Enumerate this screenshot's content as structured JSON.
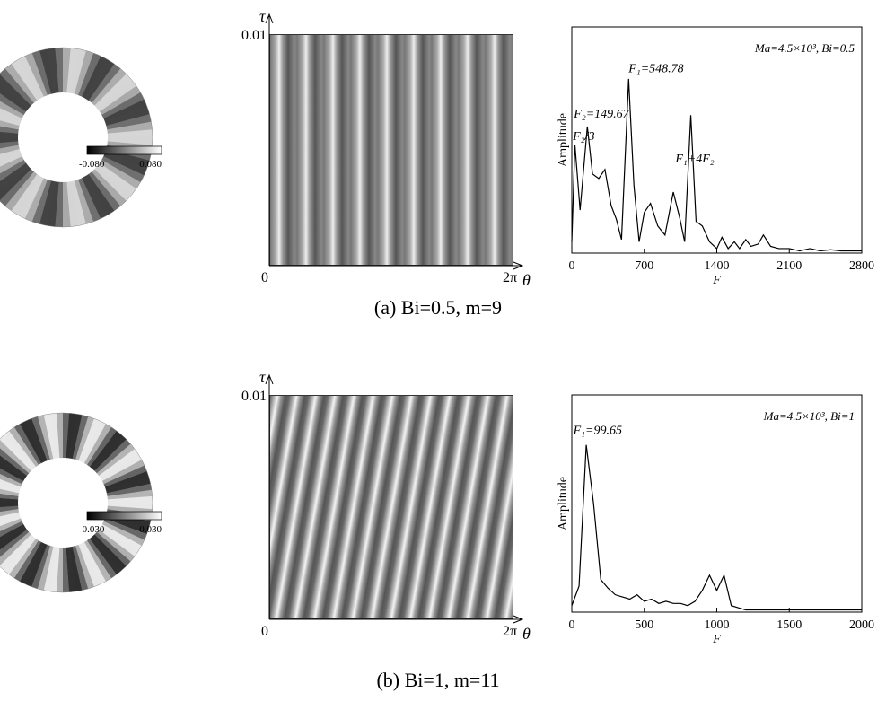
{
  "panels": [
    {
      "colorbar": {
        "min_label": "-0.080",
        "max_label": "0.080"
      },
      "spacetime": {
        "y_label": "τ",
        "y_top": "0.01",
        "origin": "0",
        "x_end": "2π",
        "x_label": "θ"
      },
      "caption": "(a) Bi=0.5, m=9"
    },
    {
      "colorbar": {
        "min_label": "-0.030",
        "max_label": "0.030"
      },
      "spacetime": {
        "y_label": "τ",
        "y_top": "0.01",
        "origin": "0",
        "x_end": "2π",
        "x_label": "θ"
      },
      "caption": "(b) Bi=1, m=11"
    }
  ],
  "chart_data": [
    {
      "type": "line",
      "xlabel": "F",
      "ylabel": "Amplitude",
      "legend_text": "Ma=4.5×10³, Bi=0.5",
      "x": [
        0,
        30,
        80,
        150,
        200,
        260,
        320,
        380,
        430,
        480,
        548.78,
        600,
        650,
        700,
        760,
        830,
        900,
        980,
        1040,
        1090,
        1149,
        1200,
        1260,
        1330,
        1400,
        1450,
        1510,
        1570,
        1620,
        1680,
        1730,
        1800,
        1850,
        1920,
        2000,
        2100,
        2200,
        2300,
        2400,
        2500,
        2600,
        2700,
        2800
      ],
      "series": [
        {
          "color": "#000000",
          "values": [
            0.05,
            0.48,
            0.19,
            0.56,
            0.35,
            0.33,
            0.37,
            0.21,
            0.15,
            0.06,
            0.77,
            0.3,
            0.05,
            0.18,
            0.22,
            0.12,
            0.08,
            0.27,
            0.16,
            0.05,
            0.61,
            0.14,
            0.12,
            0.05,
            0.02,
            0.07,
            0.02,
            0.05,
            0.02,
            0.06,
            0.03,
            0.04,
            0.08,
            0.03,
            0.02,
            0.02,
            0.01,
            0.02,
            0.01,
            0.015,
            0.01,
            0.01,
            0.01
          ]
        }
      ],
      "annotations": [
        {
          "text": "F₁=548.78",
          "x": 548.78,
          "y": 0.8
        },
        {
          "text": "F₂=149.67",
          "x": 20,
          "y": 0.6
        },
        {
          "text": "F₂/3",
          "x": 10,
          "y": 0.5
        },
        {
          "text": "F₁+4F₂",
          "x": 1000,
          "y": 0.4
        }
      ],
      "xlim": [
        0,
        2800
      ],
      "ylim": [
        0,
        1
      ],
      "xticks": [
        0,
        700,
        1400,
        2100,
        2800
      ]
    },
    {
      "type": "line",
      "xlabel": "F",
      "ylabel": "Amplitude",
      "legend_text": "Ma=4.5×10³, Bi=1",
      "x": [
        0,
        50,
        99.65,
        150,
        200,
        250,
        300,
        350,
        400,
        450,
        500,
        550,
        600,
        650,
        700,
        750,
        800,
        850,
        900,
        950,
        1000,
        1050,
        1100,
        1150,
        1200,
        1300,
        1400,
        1500,
        1600,
        1700,
        1800,
        1900,
        2000
      ],
      "series": [
        {
          "color": "#000000",
          "values": [
            0.03,
            0.12,
            0.77,
            0.5,
            0.15,
            0.11,
            0.08,
            0.07,
            0.06,
            0.08,
            0.05,
            0.06,
            0.04,
            0.05,
            0.04,
            0.04,
            0.03,
            0.05,
            0.1,
            0.17,
            0.1,
            0.17,
            0.03,
            0.02,
            0.01,
            0.01,
            0.01,
            0.01,
            0.01,
            0.01,
            0.01,
            0.01,
            0.01
          ]
        }
      ],
      "annotations": [
        {
          "text": "F₁=99.65",
          "x": 10,
          "y": 0.82
        }
      ],
      "xlim": [
        0,
        2000
      ],
      "ylim": [
        0,
        1
      ],
      "xticks": [
        0,
        500,
        1000,
        1500,
        2000
      ]
    }
  ]
}
